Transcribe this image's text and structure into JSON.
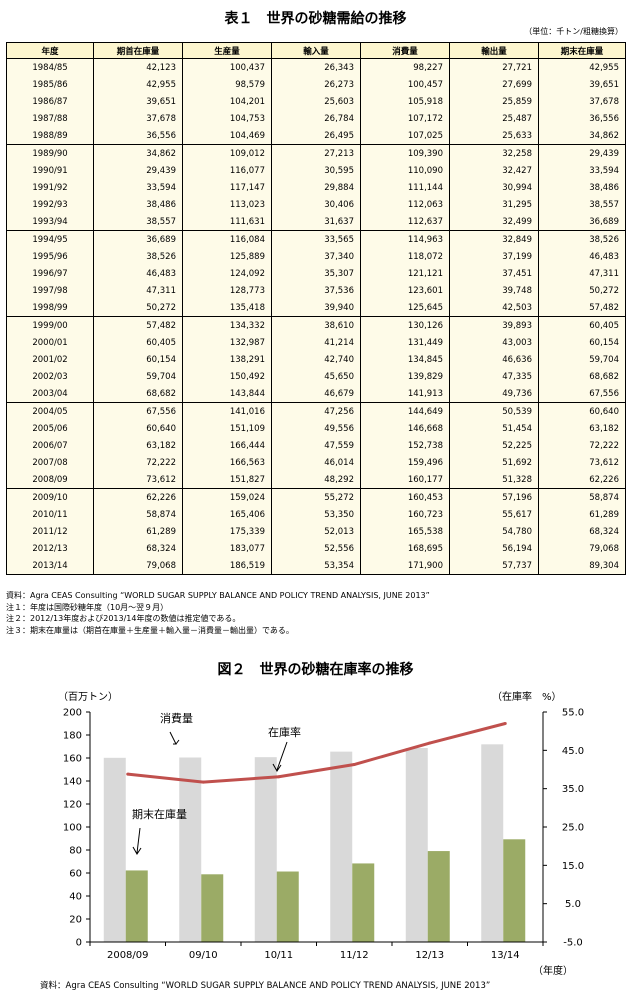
{
  "table": {
    "title": "表１　世界の砂糖需給の推移",
    "unit": "（単位：千トン/粗糖換算）",
    "headers": [
      "年度",
      "期首在庫量",
      "生産量",
      "輸入量",
      "消費量",
      "輸出量",
      "期末在庫量"
    ],
    "groups": [
      [
        [
          "1984/85",
          "42,123",
          "100,437",
          "26,343",
          "98,227",
          "27,721",
          "42,955"
        ],
        [
          "1985/86",
          "42,955",
          "98,579",
          "26,273",
          "100,457",
          "27,699",
          "39,651"
        ],
        [
          "1986/87",
          "39,651",
          "104,201",
          "25,603",
          "105,918",
          "25,859",
          "37,678"
        ],
        [
          "1987/88",
          "37,678",
          "104,753",
          "26,784",
          "107,172",
          "25,487",
          "36,556"
        ],
        [
          "1988/89",
          "36,556",
          "104,469",
          "26,495",
          "107,025",
          "25,633",
          "34,862"
        ]
      ],
      [
        [
          "1989/90",
          "34,862",
          "109,012",
          "27,213",
          "109,390",
          "32,258",
          "29,439"
        ],
        [
          "1990/91",
          "29,439",
          "116,077",
          "30,595",
          "110,090",
          "32,427",
          "33,594"
        ],
        [
          "1991/92",
          "33,594",
          "117,147",
          "29,884",
          "111,144",
          "30,994",
          "38,486"
        ],
        [
          "1992/93",
          "38,486",
          "113,023",
          "30,406",
          "112,063",
          "31,295",
          "38,557"
        ],
        [
          "1993/94",
          "38,557",
          "111,631",
          "31,637",
          "112,637",
          "32,499",
          "36,689"
        ]
      ],
      [
        [
          "1994/95",
          "36,689",
          "116,084",
          "33,565",
          "114,963",
          "32,849",
          "38,526"
        ],
        [
          "1995/96",
          "38,526",
          "125,889",
          "37,340",
          "118,072",
          "37,199",
          "46,483"
        ],
        [
          "1996/97",
          "46,483",
          "124,092",
          "35,307",
          "121,121",
          "37,451",
          "47,311"
        ],
        [
          "1997/98",
          "47,311",
          "128,773",
          "37,536",
          "123,601",
          "39,748",
          "50,272"
        ],
        [
          "1998/99",
          "50,272",
          "135,418",
          "39,940",
          "125,645",
          "42,503",
          "57,482"
        ]
      ],
      [
        [
          "1999/00",
          "57,482",
          "134,332",
          "38,610",
          "130,126",
          "39,893",
          "60,405"
        ],
        [
          "2000/01",
          "60,405",
          "132,987",
          "41,214",
          "131,449",
          "43,003",
          "60,154"
        ],
        [
          "2001/02",
          "60,154",
          "138,291",
          "42,740",
          "134,845",
          "46,636",
          "59,704"
        ],
        [
          "2002/03",
          "59,704",
          "150,492",
          "45,650",
          "139,829",
          "47,335",
          "68,682"
        ],
        [
          "2003/04",
          "68,682",
          "143,844",
          "46,679",
          "141,913",
          "49,736",
          "67,556"
        ]
      ],
      [
        [
          "2004/05",
          "67,556",
          "141,016",
          "47,256",
          "144,649",
          "50,539",
          "60,640"
        ],
        [
          "2005/06",
          "60,640",
          "151,109",
          "49,556",
          "146,668",
          "51,454",
          "63,182"
        ],
        [
          "2006/07",
          "63,182",
          "166,444",
          "47,559",
          "152,738",
          "52,225",
          "72,222"
        ],
        [
          "2007/08",
          "72,222",
          "166,563",
          "46,014",
          "159,496",
          "51,692",
          "73,612"
        ],
        [
          "2008/09",
          "73,612",
          "151,827",
          "48,292",
          "160,177",
          "51,328",
          "62,226"
        ]
      ],
      [
        [
          "2009/10",
          "62,226",
          "159,024",
          "55,272",
          "160,453",
          "57,196",
          "58,874"
        ],
        [
          "2010/11",
          "58,874",
          "165,406",
          "53,350",
          "160,723",
          "55,617",
          "61,289"
        ],
        [
          "2011/12",
          "61,289",
          "175,339",
          "52,013",
          "165,538",
          "54,780",
          "68,324"
        ],
        [
          "2012/13",
          "68,324",
          "183,077",
          "52,556",
          "168,695",
          "56,194",
          "79,068"
        ],
        [
          "2013/14",
          "79,068",
          "186,519",
          "53,354",
          "171,900",
          "57,737",
          "89,304"
        ]
      ]
    ]
  },
  "notes": [
    "資料：Agra CEAS Consulting “WORLD SUGAR SUPPLY BALANCE AND POLICY TREND ANALYSIS, JUNE 2013”",
    "注１：年度は国際砂糖年度（10月～翌９月）",
    "注２：2012/13年度および2013/14年度の数値は推定値である。",
    "注３：期末在庫量は（期首在庫量＋生産量＋輸入量－消費量－輸出量）である。"
  ],
  "chart_data": {
    "type": "bar+line",
    "title": "図２　世界の砂糖在庫率の推移",
    "categories": [
      "2008/09",
      "09/10",
      "10/11",
      "11/12",
      "12/13",
      "13/14"
    ],
    "series": [
      {
        "name": "消費量",
        "type": "bar",
        "axis": "left",
        "color": "#d9d9d9",
        "values": [
          160.177,
          160.453,
          160.723,
          165.538,
          168.695,
          171.9
        ]
      },
      {
        "name": "期末在庫量",
        "type": "bar",
        "axis": "left",
        "color": "#9bab66",
        "values": [
          62.226,
          58.874,
          61.289,
          68.324,
          79.068,
          89.304
        ]
      },
      {
        "name": "在庫率",
        "type": "line",
        "axis": "right",
        "color": "#c0504d",
        "values": [
          38.8,
          36.7,
          38.1,
          41.3,
          46.9,
          52.0
        ]
      }
    ],
    "y_left": {
      "label": "（百万トン）",
      "min": 0,
      "max": 200,
      "ticks": [
        "0",
        "20",
        "40",
        "60",
        "80",
        "100",
        "120",
        "140",
        "160",
        "180",
        "200"
      ]
    },
    "y_right": {
      "label": "（在庫率　%）",
      "min": -5,
      "max": 55,
      "ticks": [
        "-5.0",
        "5.0",
        "15.0",
        "25.0",
        "35.0",
        "45.0",
        "55.0"
      ]
    },
    "xlabel": "（年度）",
    "annotations": {
      "consumption": "消費量",
      "ratio": "在庫率",
      "stock": "期末在庫量"
    },
    "source": "資料：Agra CEAS Consulting “WORLD SUGAR SUPPLY BALANCE AND POLICY TREND ANALYSIS, JUNE 2013”"
  }
}
